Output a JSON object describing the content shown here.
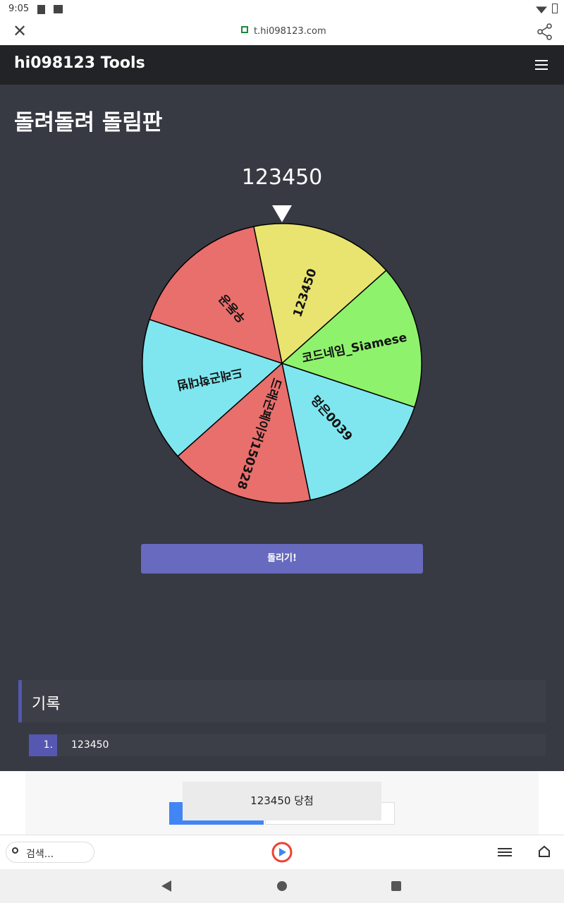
{
  "status_bar": {
    "time": "9:05"
  },
  "browser": {
    "url": "t.hi098123.com"
  },
  "navbar": {
    "brand": "hi098123 Tools"
  },
  "page": {
    "title": "돌려돌려 돌림판",
    "result": "123450",
    "wheel": {
      "items": [
        {
          "label": "123450",
          "color": "#e9e46f"
        },
        {
          "label": "코드네임_Siamese",
          "color": "#8ff26d"
        },
        {
          "label": "멍은0039",
          "color": "#7fe6ef"
        },
        {
          "label": "드래곤페이커150328",
          "color": "#e86f6c"
        },
        {
          "label": "드래곤학대범",
          "color": "#7fe6ef"
        },
        {
          "label": "우동공",
          "color": "#e86f6c"
        }
      ]
    },
    "button": "돌리기!"
  },
  "history": {
    "title": "기록",
    "rows": [
      {
        "index": "1.",
        "value": "123450"
      }
    ]
  },
  "toast": "123450 당첨",
  "bottom_bar": {
    "search_placeholder": "검색..."
  }
}
